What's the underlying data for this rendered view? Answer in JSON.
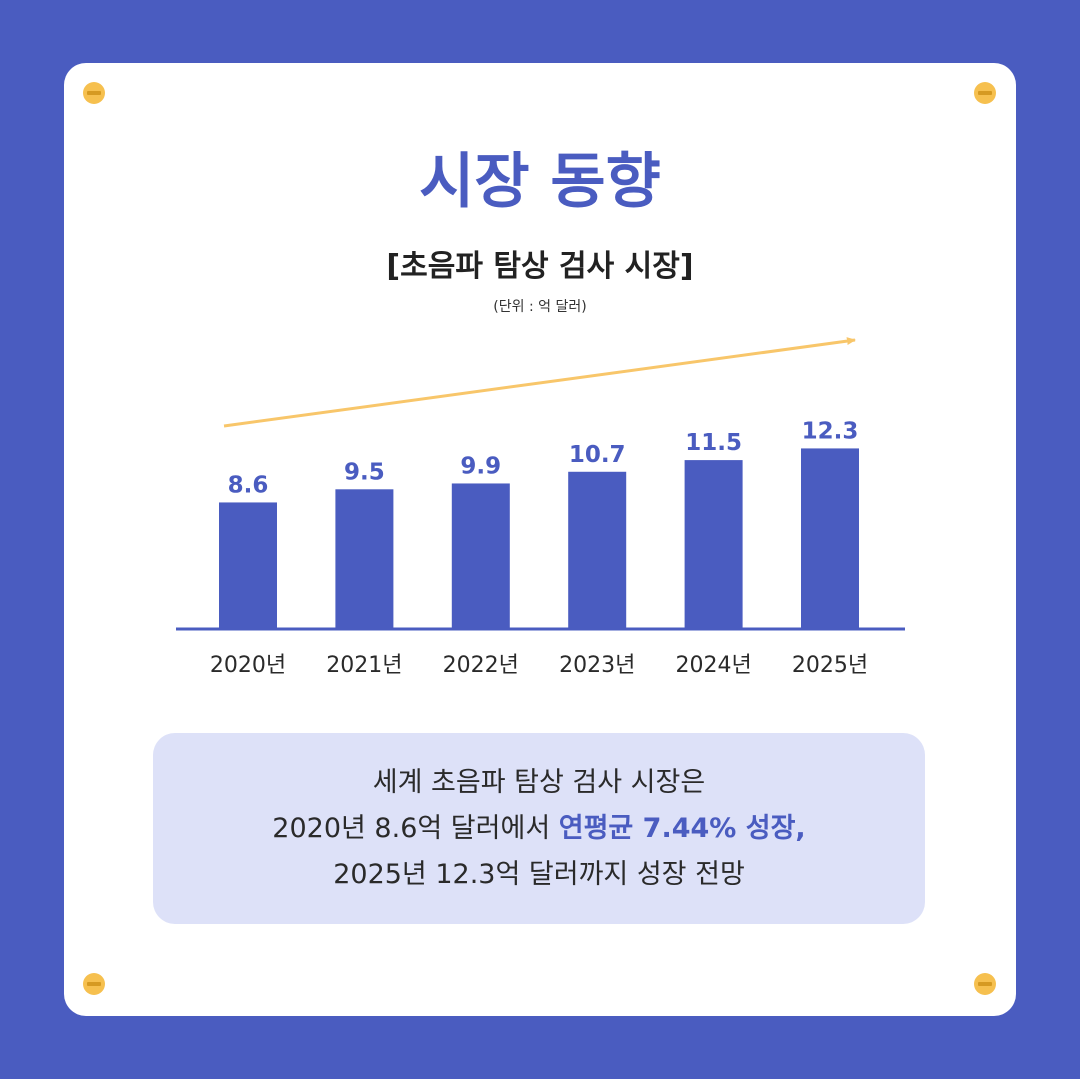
{
  "title": "시장 동향",
  "subtitle": "[초음파 탐상 검사 시장]",
  "unit": "(단위 : 억 달러)",
  "colors": {
    "background": "#4a5cc0",
    "bar": "#4a5cc0",
    "trend_arrow": "#f8c66a",
    "summary_box": "#dde1f8"
  },
  "chart_data": {
    "type": "bar",
    "title": "[초음파 탐상 검사 시장]",
    "ylabel": "(단위 : 억 달러)",
    "categories": [
      "2020년",
      "2021년",
      "2022년",
      "2023년",
      "2024년",
      "2025년"
    ],
    "values": [
      8.6,
      9.5,
      9.9,
      10.7,
      11.5,
      12.3
    ],
    "data_labels": [
      "8.6",
      "9.5",
      "9.9",
      "10.7",
      "11.5",
      "12.3"
    ],
    "grid": false,
    "trend_arrow": true
  },
  "summary": {
    "line1": "세계 초음파 탐상 검사 시장은",
    "line2_prefix": "2020년 8.6억 달러에서 ",
    "line2_highlight": "연평균 7.44% 성장,",
    "line3": "2025년 12.3억 달러까지 성장 전망"
  }
}
